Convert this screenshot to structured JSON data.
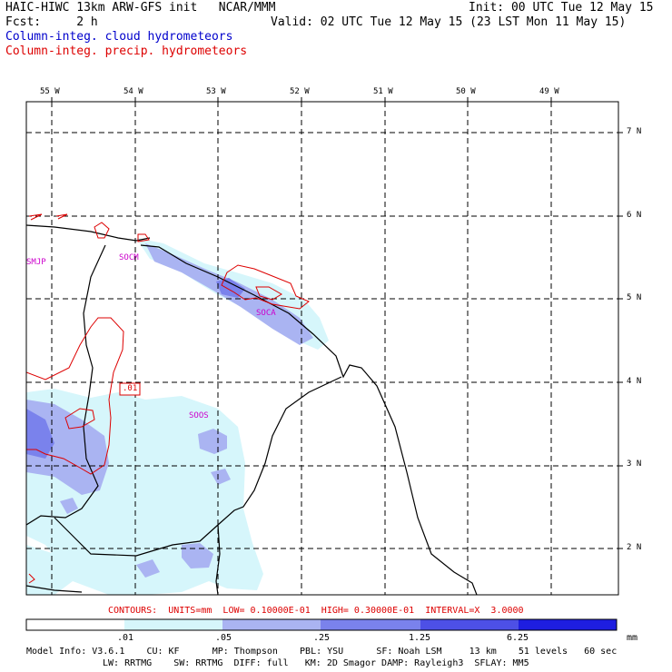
{
  "header": {
    "line1_left": "HAIC-HIWC 13km ARW-GFS init   NCAR/MMM",
    "line1_right": "Init: 00 UTC Tue 12 May 15",
    "line2_left": "Fcst:     2 h",
    "line2_right": "Valid: 02 UTC Tue 12 May 15 (23 LST Mon 11 May 15)",
    "line3": "Column-integ. cloud hydrometeors",
    "line4": "Column-integ. precip. hydrometeors",
    "colors": {
      "cloud": "#0000cc",
      "precip": "#dd0000"
    }
  },
  "axes": {
    "lon_labels": [
      "55 W",
      "54 W",
      "53 W",
      "52 W",
      "51 W",
      "50 W",
      "49 W"
    ],
    "lat_labels": [
      "7 N",
      "6 N",
      "5 N",
      "4 N",
      "3 N",
      "2 N"
    ]
  },
  "stations": [
    "SMJP",
    "SOCM",
    "SOCA",
    "SOOS"
  ],
  "contour_label": ".01",
  "contour_note": "CONTOURS:  UNITS=mm  LOW= 0.10000E-01  HIGH= 0.30000E-01  INTERVAL=X  3.0000",
  "colorbar": {
    "ticks": [
      ".01",
      ".05",
      ".25",
      "1.25",
      "6.25"
    ],
    "units": "mm",
    "colors": [
      "#ffffff",
      "#d6f6fb",
      "#aab4f2",
      "#7a82ec",
      "#4d50e6",
      "#1e1ee0"
    ]
  },
  "footer": {
    "line1": "Model Info: V3.6.1    CU: KF      MP: Thompson    PBL: YSU      SF: Noah LSM     13 km    51 levels   60 sec",
    "line2": "LW: RRTMG    SW: RRTMG  DIFF: full   KM: 2D Smagor DAMP: Rayleigh3  SFLAY: MM5"
  }
}
